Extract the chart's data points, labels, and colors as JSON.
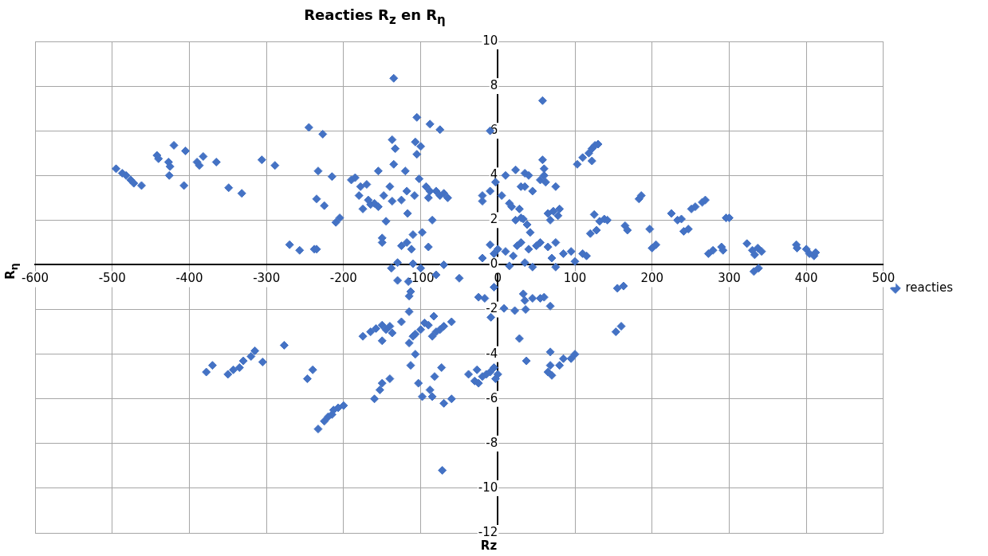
{
  "chart_data": {
    "type": "scatter",
    "title": "Reacties R$_{z}$ en R$_{η}$",
    "xlabel": "Rz",
    "ylabel": "R$_{η}$",
    "xlim": [
      -600,
      500
    ],
    "xticks": [
      -600,
      -500,
      -400,
      -300,
      -200,
      -100,
      0,
      100,
      200,
      300,
      400,
      500
    ],
    "ylim": [
      -12,
      10
    ],
    "yticks": [
      -12,
      -10,
      -8,
      -6,
      -4,
      -2,
      0,
      2,
      4,
      6,
      8,
      10
    ],
    "grid": true,
    "legend": "right",
    "marker": "diamond",
    "series": [
      {
        "name": "reacties",
        "color": "#4472c4",
        "x": [
          -495,
          -487,
          -482,
          -476,
          -472,
          -462,
          -442,
          -440,
          -427,
          -425,
          -426,
          -420,
          -405,
          -407,
          -390,
          -387,
          -382,
          -365,
          -349,
          -332,
          -306,
          -289,
          -270,
          -257,
          -238,
          -235,
          -245,
          -227,
          -233,
          -225,
          -235,
          -215,
          -210,
          -205,
          -190,
          -185,
          -180,
          -178,
          -175,
          -170,
          -168,
          -165,
          -160,
          -155,
          -148,
          -155,
          -145,
          -150,
          -150,
          -140,
          -137,
          -135,
          -137,
          -133,
          -135,
          -130,
          -138,
          -120,
          -125,
          -118,
          -117,
          -108,
          -125,
          -118,
          -110,
          -112,
          -110,
          -105,
          -107,
          -105,
          -100,
          -102,
          -98,
          -93,
          -90,
          -88,
          -85,
          -90,
          -88,
          -75,
          -80,
          -75,
          -70,
          -65,
          -70,
          -80,
          -100,
          -50,
          -130,
          -116,
          -115,
          -113,
          -10,
          -20,
          -20,
          -10,
          -3,
          10,
          5,
          15,
          18,
          23,
          35,
          40,
          30,
          35,
          45,
          28,
          23,
          30,
          33,
          38,
          42,
          55,
          60,
          58,
          60,
          62,
          58,
          75,
          65,
          68,
          72,
          78,
          80,
          -10,
          -20,
          -5,
          0,
          10,
          20,
          25,
          30,
          40,
          50,
          55,
          35,
          45,
          65,
          75,
          70,
          75,
          85,
          95,
          100,
          110,
          115,
          15,
          -25,
          -17,
          -5,
          -9,
          8,
          22,
          33,
          35,
          36,
          45,
          55,
          60,
          68,
          28,
          37,
          103,
          110,
          118,
          122,
          126,
          130,
          122,
          125,
          132,
          138,
          142,
          120,
          128,
          165,
          168,
          183,
          186,
          197,
          200,
          205,
          225,
          233,
          238,
          241,
          247,
          251,
          256,
          265,
          269,
          273,
          279,
          290,
          292,
          296,
          300,
          323,
          330,
          333,
          337,
          342,
          332,
          338,
          387,
          388,
          400,
          404,
          410,
          412,
          155,
          163,
          153,
          160,
          -378,
          -370,
          -350,
          -343,
          -335,
          -330,
          -320,
          -315,
          -305,
          -277,
          -247,
          -240,
          -233,
          -225,
          -220,
          -213,
          -215,
          -207,
          -200,
          -175,
          -165,
          -158,
          -150,
          -145,
          -150,
          -140,
          -137,
          -160,
          -153,
          -150,
          -140,
          -125,
          -115,
          -115,
          -110,
          -107,
          -113,
          -107,
          -103,
          -100,
          -95,
          -90,
          -83,
          -85,
          -80,
          -75,
          -70,
          -60,
          -98,
          -88,
          -85,
          -82,
          -73,
          -70,
          -60,
          -72,
          -38,
          -27,
          -25,
          -20,
          -15,
          -10,
          -5,
          -3,
          0,
          65,
          68,
          68,
          70,
          80,
          85,
          95,
          100,
          -30
        ],
        "values": [
          4.3,
          4.1,
          4.0,
          3.8,
          3.65,
          3.55,
          4.9,
          4.75,
          4.6,
          4.4,
          4.0,
          5.35,
          5.1,
          3.55,
          4.6,
          4.45,
          4.85,
          4.6,
          3.45,
          3.2,
          4.7,
          4.45,
          0.9,
          0.65,
          0.7,
          0.7,
          6.15,
          5.85,
          4.2,
          2.65,
          2.95,
          3.95,
          1.9,
          2.1,
          3.8,
          3.9,
          3.1,
          3.5,
          2.5,
          3.6,
          2.9,
          2.7,
          2.75,
          2.6,
          3.1,
          4.2,
          1.95,
          1.0,
          1.2,
          3.5,
          2.85,
          8.35,
          5.6,
          5.2,
          4.5,
          0.1,
          -0.15,
          4.2,
          2.9,
          3.3,
          2.3,
          3.1,
          0.85,
          1.0,
          1.35,
          0.7,
          0.05,
          6.6,
          5.5,
          4.95,
          5.3,
          3.85,
          1.45,
          3.5,
          3.0,
          3.3,
          2.0,
          0.8,
          6.3,
          6.05,
          3.3,
          3.1,
          3.2,
          3.0,
          0.0,
          -0.45,
          -0.15,
          -0.6,
          -0.7,
          -0.75,
          -1.4,
          -1.2,
          6.0,
          3.1,
          2.85,
          3.3,
          3.7,
          4.0,
          3.1,
          2.75,
          2.6,
          4.25,
          4.1,
          4.0,
          3.5,
          3.5,
          3.3,
          2.5,
          2.0,
          2.1,
          2.05,
          1.8,
          1.45,
          3.8,
          4.0,
          4.7,
          4.3,
          3.7,
          7.35,
          3.5,
          2.3,
          2.0,
          2.4,
          2.2,
          2.5,
          0.9,
          0.3,
          0.5,
          0.7,
          0.6,
          0.4,
          0.85,
          1.0,
          0.7,
          0.85,
          1.0,
          0.1,
          -0.1,
          0.8,
          1.0,
          0.3,
          -0.1,
          0.5,
          0.6,
          0.15,
          0.5,
          0.4,
          -0.05,
          -1.45,
          -1.5,
          -1.0,
          -2.35,
          -1.95,
          -2.05,
          -1.3,
          -1.6,
          -2.0,
          -1.5,
          -1.5,
          -1.45,
          -1.85,
          -3.3,
          -4.3,
          4.5,
          4.8,
          5.0,
          5.2,
          5.35,
          5.4,
          4.65,
          2.25,
          1.95,
          2.05,
          2.0,
          1.4,
          1.55,
          1.75,
          1.55,
          2.95,
          3.1,
          1.6,
          0.75,
          0.9,
          2.3,
          2.0,
          2.05,
          1.5,
          1.6,
          2.5,
          2.6,
          2.8,
          2.9,
          0.5,
          0.65,
          0.8,
          0.65,
          2.1,
          2.1,
          0.95,
          0.65,
          0.45,
          0.75,
          0.6,
          -0.3,
          -0.15,
          0.9,
          0.75,
          0.7,
          0.5,
          0.4,
          0.55,
          -1.05,
          -0.95,
          -3.0,
          -2.75,
          -4.8,
          -4.5,
          -4.9,
          -4.7,
          -4.6,
          -4.3,
          -4.1,
          -3.85,
          -4.35,
          -3.6,
          -5.1,
          -4.7,
          -7.35,
          -7.0,
          -6.8,
          -6.5,
          -6.7,
          -6.4,
          -6.3,
          -3.2,
          -3.0,
          -2.85,
          -2.7,
          -2.9,
          -3.4,
          -2.75,
          -3.05,
          -6.0,
          -5.6,
          -5.3,
          -5.1,
          -2.55,
          -2.1,
          -3.5,
          -3.2,
          -3.1,
          -4.5,
          -4.0,
          -5.3,
          -2.9,
          -2.6,
          -2.7,
          -2.3,
          -3.2,
          -3.0,
          -2.9,
          -2.75,
          -2.55,
          -5.9,
          -5.6,
          -5.9,
          -5.0,
          -4.6,
          -6.2,
          -6.0,
          -9.2,
          -4.9,
          -4.7,
          -5.3,
          -5.0,
          -4.9,
          -4.8,
          -4.6,
          -5.1,
          -4.9,
          -4.8,
          -3.9,
          -4.5,
          -4.95,
          -4.5,
          -4.2,
          -4.2,
          -4.0,
          -5.2
        ]
      }
    ]
  }
}
